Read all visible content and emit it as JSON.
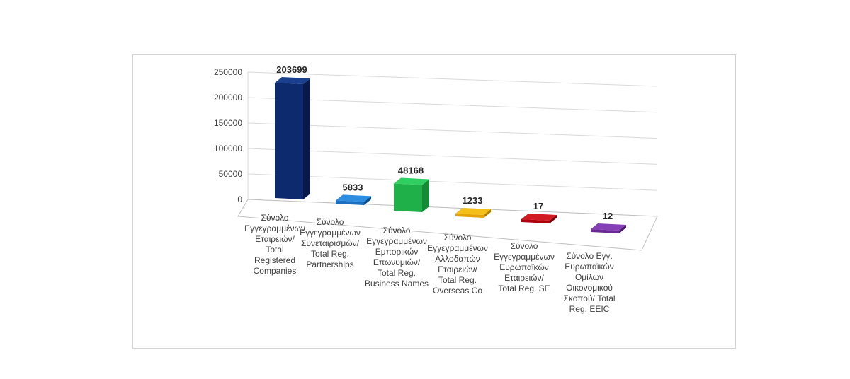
{
  "chart_data": {
    "type": "bar",
    "title": "",
    "xlabel": "",
    "ylabel": "",
    "ylim": [
      0,
      250000
    ],
    "yticks": [
      0,
      50000,
      100000,
      150000,
      200000,
      250000
    ],
    "grid": true,
    "legend": "none",
    "style": "3d-columns",
    "categories": [
      [
        "Σύνολο",
        "Εγγεγραμμένων",
        "Εταιρειών/",
        "Total",
        "Registered",
        "Companies"
      ],
      [
        "Σύνολο",
        "Εγγεγραμμένων",
        "Συνεταιρισμών/",
        "Total Reg.",
        "Partnerships"
      ],
      [
        "Σύνολο",
        "Εγγεγραμμένων",
        "Εμπορικών",
        "Επωνυμιών/",
        "Total Reg.",
        "Business Names"
      ],
      [
        "Σύνολο",
        "Εγγεγραμμένων",
        "Αλλοδαπών",
        "Εταιρειών/",
        "Total Reg.",
        "Overseas Co"
      ],
      [
        "Σύνολο",
        "Εγγεγραμμένων",
        "Ευρωπαϊκών",
        "Εταιρειών/",
        "Total Reg. SE"
      ],
      [
        "Σύνολο Εγγ.",
        "Ευρωπαϊκών",
        "Ομίλων",
        "Οικονομικού",
        "Σκοπού/ Total",
        "Reg. EEIC"
      ]
    ],
    "values": [
      203699,
      5833,
      48168,
      1233,
      17,
      12
    ],
    "data_labels": [
      "203699",
      "5833",
      "48168",
      "1233",
      "17",
      "12"
    ],
    "bar_colors": [
      "#0d2a6e",
      "#1a6fc0",
      "#1fb04a",
      "#e1a400",
      "#b0000c",
      "#6a2a95"
    ],
    "bar_side_colors": [
      "#08194a",
      "#0f4e8e",
      "#148a36",
      "#b07f00",
      "#7c0008",
      "#4a1c6b"
    ],
    "bar_top_colors": [
      "#1b3f8f",
      "#2d8de0",
      "#2fd061",
      "#f5bf1a",
      "#d11a22",
      "#8540b5"
    ]
  }
}
